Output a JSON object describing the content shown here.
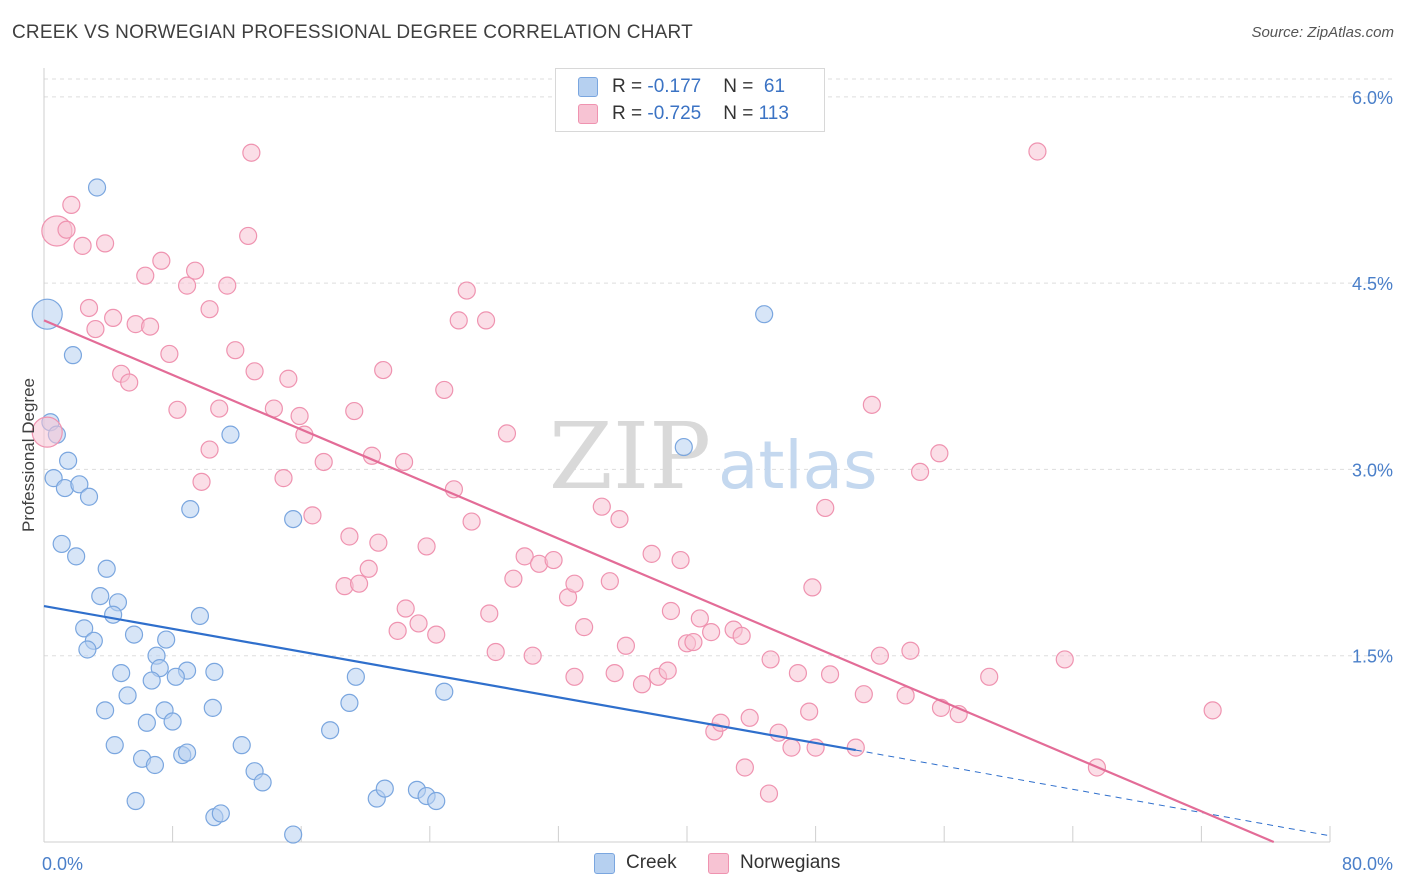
{
  "header": {
    "title": "CREEK VS NORWEGIAN PROFESSIONAL DEGREE CORRELATION CHART",
    "source": "Source: ZipAtlas.com"
  },
  "legend": {
    "creek": {
      "r_label": "R = ",
      "r_value": "-0.177",
      "n_label": "N = ",
      "n_value": " 61"
    },
    "norwegians": {
      "r_label": "R = ",
      "r_value": "-0.725",
      "n_label": "N = ",
      "n_value": "113"
    }
  },
  "bottom_legend": {
    "creek": "Creek",
    "norwegians": "Norwegians"
  },
  "watermark": {
    "zip": "ZIP",
    "atlas": "atlas"
  },
  "colors": {
    "creek_fill": "#b6d0f0",
    "creek_stroke": "#7aa6df",
    "creek_line": "#2f6fcc",
    "norw_fill": "#f7c3d3",
    "norw_stroke": "#ef93b0",
    "norw_line": "#e36c97",
    "tick": "#4a7fc9",
    "grid": "#dddddd"
  },
  "chart_data": {
    "type": "scatter",
    "title": "CREEK VS NORWEGIAN PROFESSIONAL DEGREE CORRELATION CHART",
    "xlabel": "",
    "ylabel": "Professional Degree",
    "xlim": [
      0,
      80
    ],
    "ylim": [
      0,
      6.2
    ],
    "x_tick_labels": [
      {
        "value": 0,
        "label": "0.0%"
      },
      {
        "value": 80,
        "label": "80.0%"
      }
    ],
    "y_ticks": [
      {
        "value": 1.5,
        "label": "1.5%"
      },
      {
        "value": 3.0,
        "label": "3.0%"
      },
      {
        "value": 4.5,
        "label": "4.5%"
      },
      {
        "value": 6.0,
        "label": "6.0%"
      }
    ],
    "grid": "horizontal dashed",
    "legend_position": "top-center",
    "series": [
      {
        "name": "Creek",
        "r": -0.177,
        "n": 61,
        "trend": {
          "x0": 0,
          "y0": 1.9,
          "x1": 50.5,
          "y1": 0.74,
          "dashed_to_x": 80,
          "dashed_to_y": 0.05
        },
        "points": [
          [
            3.3,
            5.27
          ],
          [
            0.2,
            4.25
          ],
          [
            1.8,
            3.92
          ],
          [
            0.4,
            3.38
          ],
          [
            0.8,
            3.28
          ],
          [
            1.5,
            3.07
          ],
          [
            0.6,
            2.93
          ],
          [
            1.3,
            2.85
          ],
          [
            2.2,
            2.88
          ],
          [
            2.8,
            2.78
          ],
          [
            1.1,
            2.4
          ],
          [
            2.0,
            2.3
          ],
          [
            3.9,
            2.2
          ],
          [
            3.5,
            1.98
          ],
          [
            4.6,
            1.93
          ],
          [
            4.3,
            1.83
          ],
          [
            2.5,
            1.72
          ],
          [
            3.1,
            1.62
          ],
          [
            5.6,
            1.67
          ],
          [
            7.6,
            1.63
          ],
          [
            2.7,
            1.55
          ],
          [
            7.0,
            1.5
          ],
          [
            4.8,
            1.36
          ],
          [
            7.2,
            1.4
          ],
          [
            8.9,
            1.38
          ],
          [
            10.6,
            1.37
          ],
          [
            6.7,
            1.3
          ],
          [
            8.2,
            1.33
          ],
          [
            5.2,
            1.18
          ],
          [
            7.5,
            1.06
          ],
          [
            10.5,
            1.08
          ],
          [
            3.8,
            1.06
          ],
          [
            6.4,
            0.96
          ],
          [
            8.0,
            0.97
          ],
          [
            4.4,
            0.78
          ],
          [
            6.1,
            0.67
          ],
          [
            8.6,
            0.7
          ],
          [
            8.9,
            0.72
          ],
          [
            6.9,
            0.62
          ],
          [
            12.3,
            0.78
          ],
          [
            13.1,
            0.57
          ],
          [
            13.6,
            0.48
          ],
          [
            5.7,
            0.33
          ],
          [
            10.6,
            0.2
          ],
          [
            11.0,
            0.23
          ],
          [
            15.5,
            0.06
          ],
          [
            9.1,
            2.68
          ],
          [
            9.7,
            1.82
          ],
          [
            11.6,
            3.28
          ],
          [
            15.5,
            2.6
          ],
          [
            17.8,
            0.9
          ],
          [
            19.0,
            1.12
          ],
          [
            19.4,
            1.33
          ],
          [
            20.7,
            0.35
          ],
          [
            21.2,
            0.43
          ],
          [
            23.2,
            0.42
          ],
          [
            23.8,
            0.37
          ],
          [
            24.4,
            0.33
          ],
          [
            24.9,
            1.21
          ],
          [
            39.8,
            3.18
          ],
          [
            44.8,
            4.25
          ]
        ]
      },
      {
        "name": "Norwegians",
        "r": -0.725,
        "n": 113,
        "trend": {
          "x0": 0,
          "y0": 4.2,
          "x1": 76.5,
          "y1": 0.0
        },
        "points": [
          [
            0.2,
            3.3
          ],
          [
            0.8,
            4.92
          ],
          [
            1.7,
            5.13
          ],
          [
            1.4,
            4.93
          ],
          [
            2.4,
            4.8
          ],
          [
            3.8,
            4.82
          ],
          [
            2.8,
            4.3
          ],
          [
            3.2,
            4.13
          ],
          [
            4.3,
            4.22
          ],
          [
            5.7,
            4.17
          ],
          [
            6.6,
            4.15
          ],
          [
            6.3,
            4.56
          ],
          [
            7.3,
            4.68
          ],
          [
            8.9,
            4.48
          ],
          [
            9.4,
            4.6
          ],
          [
            11.4,
            4.48
          ],
          [
            10.3,
            4.29
          ],
          [
            12.7,
            4.88
          ],
          [
            12.9,
            5.55
          ],
          [
            7.8,
            3.93
          ],
          [
            4.8,
            3.77
          ],
          [
            5.3,
            3.7
          ],
          [
            11.9,
            3.96
          ],
          [
            13.1,
            3.79
          ],
          [
            15.2,
            3.73
          ],
          [
            8.3,
            3.48
          ],
          [
            10.9,
            3.49
          ],
          [
            14.3,
            3.49
          ],
          [
            15.9,
            3.43
          ],
          [
            16.2,
            3.28
          ],
          [
            10.3,
            3.16
          ],
          [
            9.8,
            2.9
          ],
          [
            14.9,
            2.93
          ],
          [
            16.7,
            2.63
          ],
          [
            17.4,
            3.06
          ],
          [
            19.3,
            3.47
          ],
          [
            20.4,
            3.11
          ],
          [
            21.1,
            3.8
          ],
          [
            22.4,
            3.06
          ],
          [
            24.9,
            3.64
          ],
          [
            25.5,
            2.84
          ],
          [
            25.8,
            4.2
          ],
          [
            26.3,
            4.44
          ],
          [
            27.5,
            4.2
          ],
          [
            28.8,
            3.29
          ],
          [
            26.6,
            2.58
          ],
          [
            19.0,
            2.46
          ],
          [
            20.8,
            2.41
          ],
          [
            23.8,
            2.38
          ],
          [
            20.2,
            2.2
          ],
          [
            18.7,
            2.06
          ],
          [
            19.6,
            2.08
          ],
          [
            22.5,
            1.88
          ],
          [
            22.0,
            1.7
          ],
          [
            23.3,
            1.76
          ],
          [
            24.4,
            1.67
          ],
          [
            27.7,
            1.84
          ],
          [
            28.1,
            1.53
          ],
          [
            29.2,
            2.12
          ],
          [
            29.9,
            2.3
          ],
          [
            30.8,
            2.24
          ],
          [
            30.4,
            1.5
          ],
          [
            31.7,
            2.27
          ],
          [
            32.6,
            1.97
          ],
          [
            33.0,
            2.08
          ],
          [
            33.6,
            1.73
          ],
          [
            33.0,
            1.33
          ],
          [
            34.7,
            2.7
          ],
          [
            35.2,
            2.1
          ],
          [
            35.5,
            1.36
          ],
          [
            35.8,
            2.6
          ],
          [
            36.2,
            1.58
          ],
          [
            37.2,
            1.27
          ],
          [
            37.8,
            2.32
          ],
          [
            38.2,
            1.33
          ],
          [
            38.8,
            1.38
          ],
          [
            39.0,
            1.86
          ],
          [
            39.6,
            2.27
          ],
          [
            40.0,
            1.6
          ],
          [
            40.4,
            1.61
          ],
          [
            40.8,
            1.8
          ],
          [
            41.5,
            1.69
          ],
          [
            42.9,
            1.71
          ],
          [
            41.7,
            0.89
          ],
          [
            42.1,
            0.96
          ],
          [
            43.4,
            1.66
          ],
          [
            43.6,
            0.6
          ],
          [
            43.9,
            1.0
          ],
          [
            45.1,
            0.39
          ],
          [
            45.2,
            1.47
          ],
          [
            45.7,
            0.88
          ],
          [
            46.5,
            0.76
          ],
          [
            46.9,
            1.36
          ],
          [
            47.6,
            1.05
          ],
          [
            47.8,
            2.05
          ],
          [
            48.0,
            0.76
          ],
          [
            48.6,
            2.69
          ],
          [
            48.9,
            1.35
          ],
          [
            50.5,
            0.76
          ],
          [
            51.0,
            1.19
          ],
          [
            51.5,
            3.52
          ],
          [
            52.0,
            1.5
          ],
          [
            53.6,
            1.18
          ],
          [
            53.9,
            1.54
          ],
          [
            54.5,
            2.98
          ],
          [
            55.7,
            3.13
          ],
          [
            55.8,
            1.08
          ],
          [
            56.9,
            1.03
          ],
          [
            58.8,
            1.33
          ],
          [
            61.8,
            5.56
          ],
          [
            63.5,
            1.47
          ],
          [
            65.5,
            0.6
          ],
          [
            72.7,
            1.06
          ]
        ]
      }
    ]
  }
}
